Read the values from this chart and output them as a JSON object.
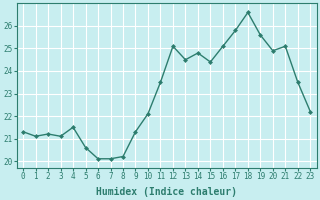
{
  "x": [
    0,
    1,
    2,
    3,
    4,
    5,
    6,
    7,
    8,
    9,
    10,
    11,
    12,
    13,
    14,
    15,
    16,
    17,
    18,
    19,
    20,
    21,
    22,
    23
  ],
  "y": [
    21.3,
    21.1,
    21.2,
    21.1,
    21.5,
    20.6,
    20.1,
    20.1,
    20.2,
    21.3,
    22.1,
    23.5,
    25.1,
    24.5,
    24.8,
    24.4,
    25.1,
    25.8,
    26.6,
    25.6,
    24.9,
    25.1,
    23.5,
    22.2
  ],
  "line_color": "#2d7d6e",
  "marker": "D",
  "markersize": 2.0,
  "linewidth": 1.0,
  "xlabel": "Humidex (Indice chaleur)",
  "xlabel_fontsize": 7,
  "xlabel_bold": true,
  "xlim": [
    -0.5,
    23.5
  ],
  "ylim": [
    19.7,
    27.0
  ],
  "yticks": [
    20,
    21,
    22,
    23,
    24,
    25,
    26
  ],
  "xticks": [
    0,
    1,
    2,
    3,
    4,
    5,
    6,
    7,
    8,
    9,
    10,
    11,
    12,
    13,
    14,
    15,
    16,
    17,
    18,
    19,
    20,
    21,
    22,
    23
  ],
  "bg_color": "#c8eef0",
  "grid_color": "#ffffff",
  "tick_color": "#2d7d6e",
  "axis_color": "#2d7d6e",
  "tick_fontsize": 5.5,
  "figsize": [
    3.2,
    2.0
  ],
  "dpi": 100
}
